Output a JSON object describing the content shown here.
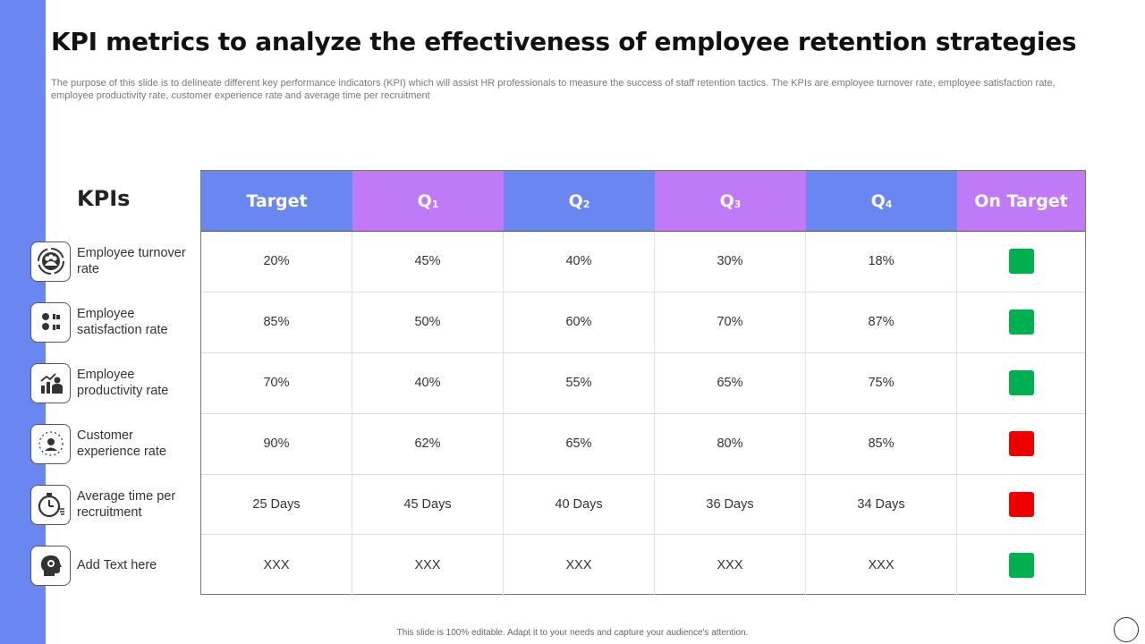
{
  "slide": {
    "title": "KPI metrics to analyze the effectiveness of employee retention strategies",
    "subtitle": "The purpose of this slide is to delineate different key  performance indicators (KPI) which will assist HR professionals to measure the success of staff retention tactics. The KPIs are employee turnover rate, employee satisfaction rate, employee productivity rate, customer experience rate and average time per recruitment",
    "kpis_heading": "KPIs",
    "footer": "This slide is 100% editable.  Adapt it to your needs and capture your audience's attention."
  },
  "colors": {
    "sidebar": "#6a86f0",
    "header_blue": "#6a86f0",
    "header_purple": "#c07af8",
    "on_target_green": "#00b050",
    "off_target_red": "#ee0000"
  },
  "table": {
    "headers": [
      {
        "label": "Target",
        "sub": "",
        "color": "#6a86f0"
      },
      {
        "label": "Q",
        "sub": "1",
        "color": "#c07af8"
      },
      {
        "label": "Q",
        "sub": "2",
        "color": "#6a86f0"
      },
      {
        "label": "Q",
        "sub": "3",
        "color": "#c07af8"
      },
      {
        "label": "Q",
        "sub": "4",
        "color": "#6a86f0"
      },
      {
        "label": "On Target",
        "sub": "",
        "color": "#c07af8"
      }
    ],
    "rows": [
      {
        "kpi": "Employee turnover rate",
        "icon": "team-cycle-icon",
        "target": "20%",
        "q1": "45%",
        "q2": "40%",
        "q3": "30%",
        "q4": "18%",
        "status": "green"
      },
      {
        "kpi": "Employee satisfaction rate",
        "icon": "satisfaction-faces-icon",
        "target": "85%",
        "q1": "50%",
        "q2": "60%",
        "q3": "70%",
        "q4": "87%",
        "status": "green"
      },
      {
        "kpi": "Employee productivity rate",
        "icon": "productivity-chart-icon",
        "target": "70%",
        "q1": "40%",
        "q2": "55%",
        "q3": "65%",
        "q4": "75%",
        "status": "green"
      },
      {
        "kpi": "Customer experience rate",
        "icon": "customer-stars-icon",
        "target": "90%",
        "q1": "62%",
        "q2": "65%",
        "q3": "80%",
        "q4": "85%",
        "status": "red"
      },
      {
        "kpi": "Average time per recruitment",
        "icon": "stopwatch-icon",
        "target": "25 Days",
        "q1": "45 Days",
        "q2": "40 Days",
        "q3": "36 Days",
        "q4": "34 Days",
        "status": "red"
      },
      {
        "kpi": "Add Text here",
        "icon": "head-gear-icon",
        "target": "XXX",
        "q1": "XXX",
        "q2": "XXX",
        "q3": "XXX",
        "q4": "XXX",
        "status": "green"
      }
    ]
  }
}
